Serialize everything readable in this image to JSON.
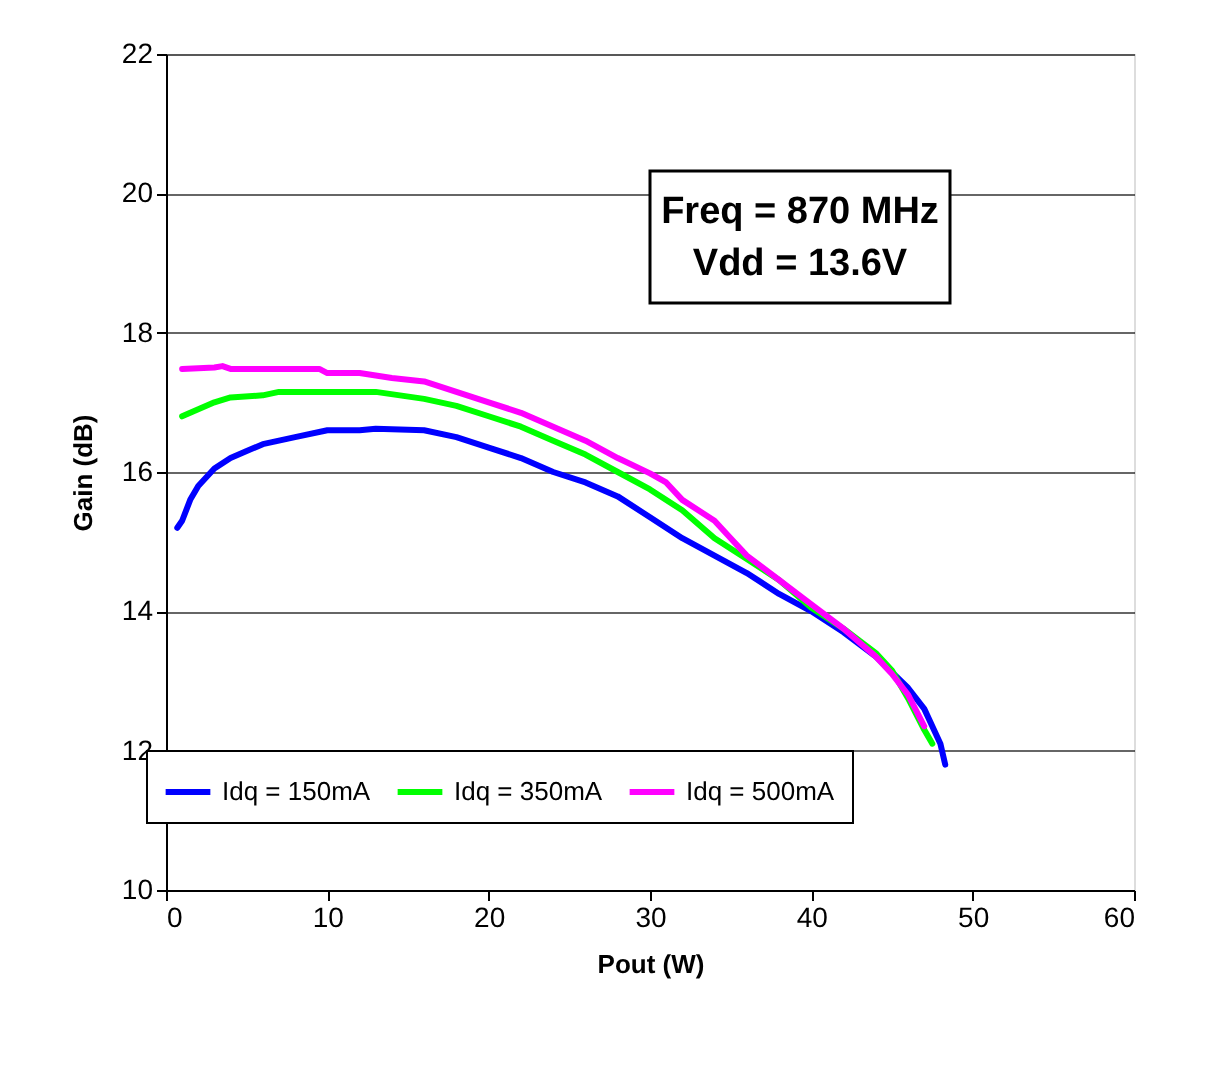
{
  "chart_data": {
    "type": "line",
    "xlabel": "Pout (W)",
    "ylabel": "Gain (dB)",
    "xlim": [
      0,
      60
    ],
    "xticks": [
      0,
      10,
      20,
      30,
      40,
      50,
      60
    ],
    "ylim": [
      10,
      22
    ],
    "yticks": [
      10,
      12,
      14,
      16,
      18,
      20,
      22
    ],
    "grid": "y",
    "legend": "bottom",
    "marker": "none",
    "line_style": "solid",
    "annotations": [
      "Freq = 870 MHz",
      "Vdd = 13.6V"
    ],
    "series": [
      {
        "name": "Idq = 150mA",
        "color": "#0000ff",
        "x": [
          0.7,
          1,
          1.5,
          2,
          3,
          4,
          5,
          6,
          8,
          10,
          12,
          13,
          16,
          18,
          20,
          22,
          24,
          26,
          28,
          30,
          32,
          34,
          36,
          38,
          40,
          42,
          44,
          46,
          47,
          48,
          48.3
        ],
        "values": [
          15.2,
          15.3,
          15.6,
          15.8,
          16.05,
          16.2,
          16.3,
          16.4,
          16.5,
          16.6,
          16.6,
          16.62,
          16.6,
          16.5,
          16.35,
          16.2,
          16.0,
          15.85,
          15.65,
          15.35,
          15.05,
          14.8,
          14.55,
          14.25,
          14.0,
          13.7,
          13.35,
          12.9,
          12.6,
          12.1,
          11.8
        ]
      },
      {
        "name": "Idq = 350mA",
        "color": "#00ff00",
        "x": [
          1,
          2,
          3,
          4,
          6,
          7,
          10,
          13,
          16,
          18,
          20,
          22,
          24,
          26,
          28,
          30,
          32,
          34,
          36,
          38,
          40,
          42,
          44,
          45,
          46,
          47,
          47.5
        ],
        "values": [
          16.8,
          16.9,
          17.0,
          17.07,
          17.1,
          17.15,
          17.15,
          17.15,
          17.05,
          16.95,
          16.8,
          16.65,
          16.45,
          16.25,
          16.0,
          15.75,
          15.45,
          15.05,
          14.75,
          14.45,
          14.05,
          13.75,
          13.4,
          13.15,
          12.75,
          12.3,
          12.1
        ]
      },
      {
        "name": "Idq = 500mA",
        "color": "#ff00ff",
        "x": [
          1,
          3,
          3.5,
          4,
          9.5,
          10,
          12,
          14,
          16,
          18,
          20,
          22,
          24,
          26,
          28,
          30,
          31,
          32,
          34,
          35,
          36,
          38,
          40,
          42,
          44,
          45,
          46,
          47
        ],
        "values": [
          17.48,
          17.5,
          17.52,
          17.48,
          17.48,
          17.42,
          17.42,
          17.35,
          17.3,
          17.15,
          17.0,
          16.85,
          16.65,
          16.45,
          16.2,
          15.98,
          15.85,
          15.6,
          15.3,
          15.05,
          14.8,
          14.45,
          14.1,
          13.75,
          13.35,
          13.1,
          12.8,
          12.35
        ]
      }
    ]
  }
}
